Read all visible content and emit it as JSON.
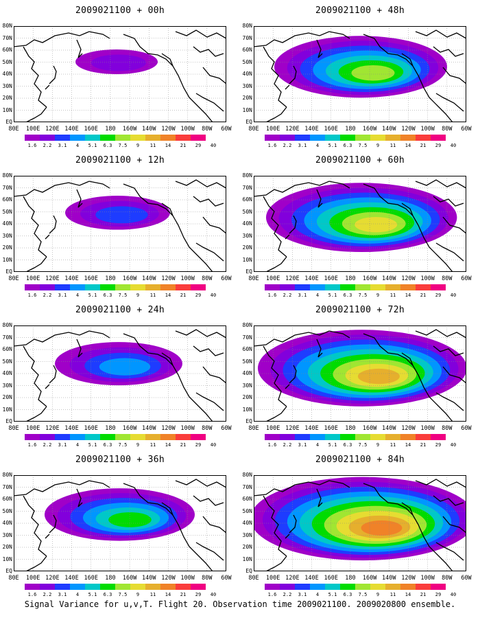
{
  "colorbar": {
    "levels": [
      "1.6",
      "2.2",
      "3.1",
      "4",
      "5.1",
      "6.3",
      "7.5",
      "9",
      "11",
      "14",
      "21",
      "29",
      "40"
    ],
    "colors": [
      "#a000c8",
      "#8200dc",
      "#1e3cff",
      "#0096ff",
      "#00c8c8",
      "#00dc00",
      "#a0e632",
      "#e6dc32",
      "#e6af2d",
      "#f08228",
      "#fa3c3c",
      "#f00082"
    ]
  },
  "x_ticks": [
    "80E",
    "100E",
    "120E",
    "140E",
    "160E",
    "180",
    "160W",
    "140W",
    "120W",
    "100W",
    "80W",
    "60W"
  ],
  "y_ticks": [
    "80N",
    "70N",
    "60N",
    "50N",
    "40N",
    "30N",
    "20N",
    "10N",
    "EQ"
  ],
  "panels": [
    {
      "title": "2009021100 + 00h",
      "intensity": 0.0
    },
    {
      "title": "2009021100 + 12h",
      "intensity": 0.15
    },
    {
      "title": "2009021100 + 24h",
      "intensity": 0.3
    },
    {
      "title": "2009021100 + 36h",
      "intensity": 0.45
    },
    {
      "title": "2009021100 + 48h",
      "intensity": 0.6
    },
    {
      "title": "2009021100 + 60h",
      "intensity": 0.72
    },
    {
      "title": "2009021100 + 72h",
      "intensity": 0.84
    },
    {
      "title": "2009021100 + 84h",
      "intensity": 0.95
    }
  ],
  "footer": "Signal Variance for u,v,T. Flight 20. Observation time 2009021100. 2009020800 ensemble."
}
